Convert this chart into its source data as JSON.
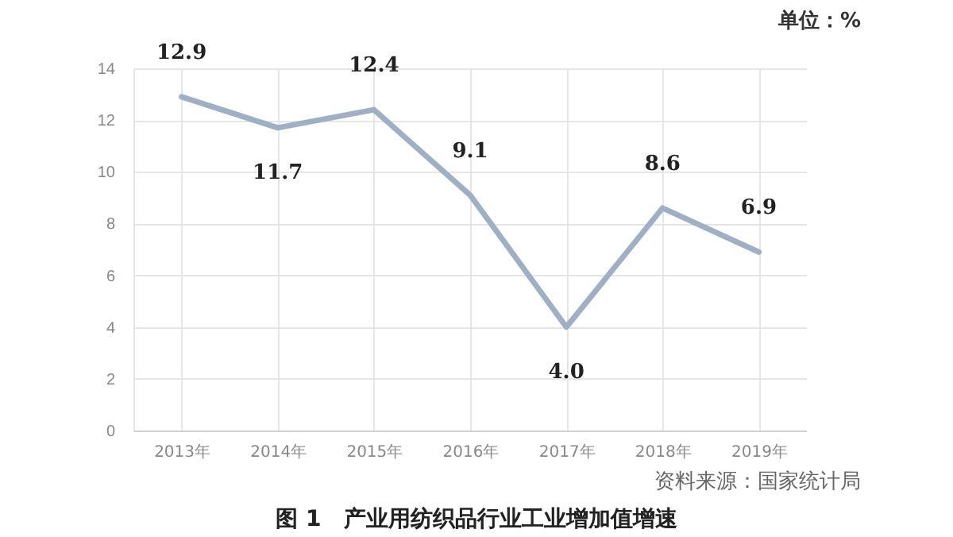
{
  "chart_data": {
    "type": "line",
    "title": "图 1　产业用纺织品行业工业增加值增速",
    "categories": [
      "2013年",
      "2014年",
      "2015年",
      "2016年",
      "2017年",
      "2018年",
      "2019年"
    ],
    "series": [
      {
        "color": "#9fb0c4",
        "values": [
          12.9,
          11.7,
          12.4,
          9.1,
          4.0,
          8.6,
          6.9
        ],
        "value_labels": [
          "12.9",
          "11.7",
          "12.4",
          "9.1",
          "4.0",
          "8.6",
          "6.9"
        ]
      }
    ],
    "ylim": [
      0,
      14
    ],
    "yticks": [
      0,
      2,
      4,
      6,
      8,
      10,
      12,
      14
    ],
    "grid": true,
    "marker": "none",
    "line_style": "solid",
    "annotations": [
      "单位：%",
      "资料来源：国家统计局"
    ]
  }
}
